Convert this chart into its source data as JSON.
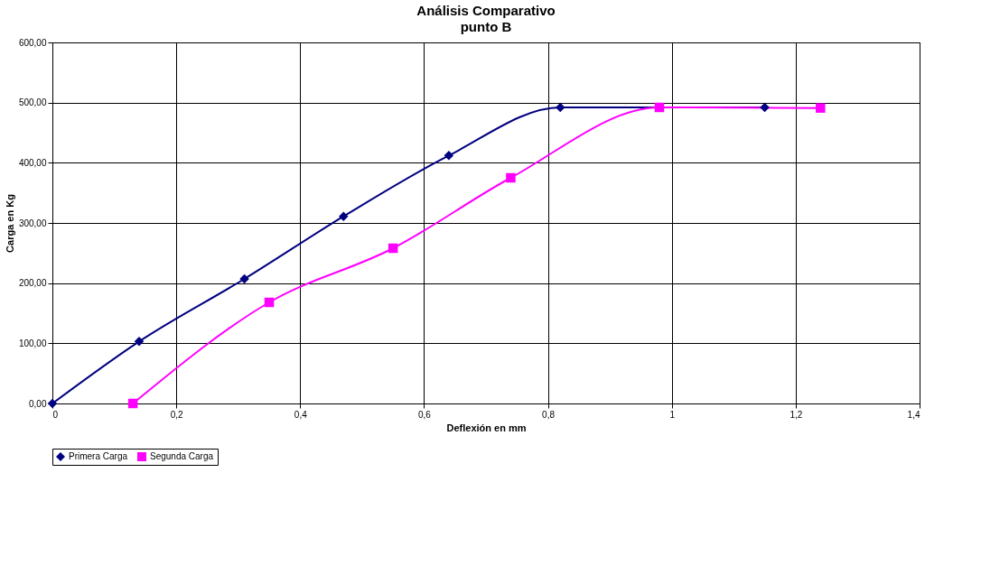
{
  "chart_data": {
    "type": "line",
    "title": "Análisis Comparativo",
    "subtitle": "punto B",
    "xlabel": "Deflexión en mm",
    "ylabel": "Carga en Kg",
    "xlim": [
      0,
      1.4
    ],
    "xticks": [
      0,
      {
        "value": 0.2,
        "label": "0,2"
      },
      {
        "value": 0.4,
        "label": "0,4"
      },
      {
        "value": 0.6,
        "label": "0,6"
      },
      {
        "value": 0.8,
        "label": "0,8"
      },
      1,
      {
        "value": 1.2,
        "label": "1,2"
      },
      {
        "value": 1.4,
        "label": "1,4"
      }
    ],
    "ylim": [
      0,
      600
    ],
    "yticks": [
      {
        "value": 0,
        "label": "0,00"
      },
      {
        "value": 100,
        "label": "100,00"
      },
      {
        "value": 200,
        "label": "200,00"
      },
      {
        "value": 300,
        "label": "300,00"
      },
      {
        "value": 400,
        "label": "400,00"
      },
      {
        "value": 500,
        "label": "500,00"
      },
      {
        "value": 600,
        "label": "600,00"
      }
    ],
    "grid": true,
    "legend": "bottom",
    "series": [
      {
        "name": "Primera Carga",
        "color": "#000080",
        "marker": "diamond",
        "x": [
          0,
          0.14,
          0.31,
          0.47,
          0.64,
          0.82,
          1.15
        ],
        "values": [
          0,
          103,
          207,
          311,
          412,
          492,
          492
        ]
      },
      {
        "name": "Segunda Carga",
        "color": "#ff00ff",
        "marker": "square",
        "x": [
          0.13,
          0.35,
          0.55,
          0.74,
          0.98,
          1.24
        ],
        "values": [
          0,
          168,
          258,
          375,
          492,
          491
        ]
      }
    ]
  }
}
